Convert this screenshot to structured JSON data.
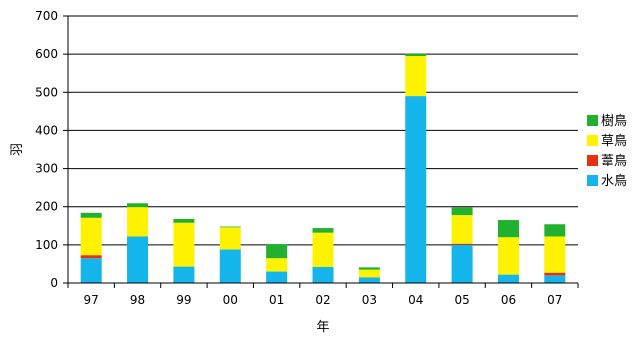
{
  "chart_data": {
    "type": "bar",
    "stacked": true,
    "title": "",
    "xlabel": "年",
    "ylabel": "羽",
    "ylim": [
      0,
      700
    ],
    "yticks": [
      0,
      100,
      200,
      300,
      400,
      500,
      600,
      700
    ],
    "grid": true,
    "legend_position": "right",
    "categories": [
      "97",
      "98",
      "99",
      "00",
      "01",
      "02",
      "03",
      "04",
      "05",
      "06",
      "07"
    ],
    "series": [
      {
        "name": "水鳥",
        "color": "#13B5EA",
        "values": [
          65,
          122,
          43,
          88,
          30,
          42,
          15,
          490,
          100,
          22,
          20
        ]
      },
      {
        "name": "葦鳥",
        "color": "#E8320F",
        "values": [
          8,
          0,
          0,
          0,
          0,
          0,
          0,
          0,
          3,
          0,
          7
        ]
      },
      {
        "name": "草鳥",
        "color": "#FFF200",
        "values": [
          98,
          77,
          115,
          58,
          35,
          90,
          20,
          105,
          75,
          98,
          95
        ]
      },
      {
        "name": "樹鳥",
        "color": "#22B12F",
        "values": [
          13,
          10,
          10,
          2,
          37,
          12,
          6,
          6,
          20,
          45,
          32
        ]
      }
    ],
    "legend_order": [
      "樹鳥",
      "草鳥",
      "葦鳥",
      "水鳥"
    ]
  }
}
